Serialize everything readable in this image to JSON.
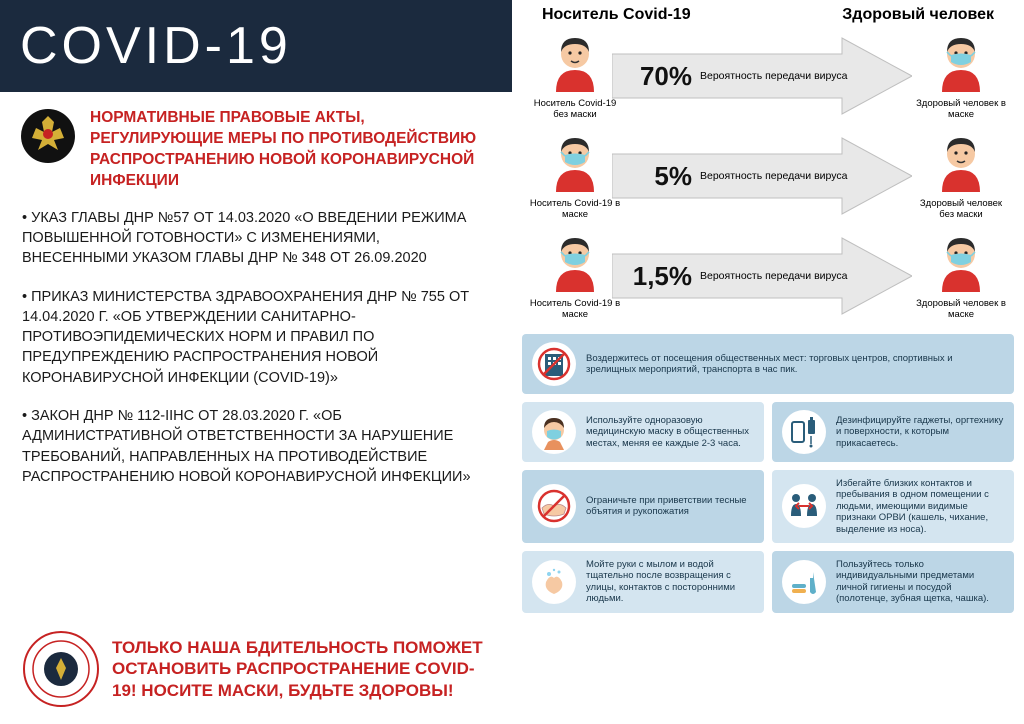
{
  "colors": {
    "title_bg": "#1b2a3e",
    "title_fg": "#ffffff",
    "accent_red": "#c62222",
    "text": "#1a1a1a",
    "arrow_fill": "#e8e8e8",
    "arrow_stroke": "#bfbfbf",
    "tip_bg_a": "#bcd6e6",
    "tip_bg_b": "#d4e5f0",
    "tip_text": "#18364a",
    "person_red": "#d9322e",
    "person_skin": "#f6c9a3",
    "person_hair": "#2b2b2b",
    "mask": "#7fd0e0",
    "stamp_ring": "#c62222",
    "emblem_bg": "#111111"
  },
  "title": "COVID-19",
  "subtitle": "НОРМАТИВНЫЕ ПРАВОВЫЕ АКТЫ, РЕГУЛИРУЮЩИЕ МЕРЫ ПО ПРОТИВОДЕЙСТВИЮ РАСПРОСТРАНЕНИЮ НОВОЙ КОРОНАВИРУСНОЙ ИНФЕКЦИИ",
  "decrees": [
    "• УКАЗ ГЛАВЫ ДНР №57 ОТ 14.03.2020 «О ВВЕДЕНИИ РЕЖИМА ПОВЫШЕННОЙ ГОТОВНОСТИ» С ИЗМЕНЕНИЯМИ, ВНЕСЕННЫМИ  УКАЗОМ ГЛАВЫ ДНР № 348 ОТ 26.09.2020",
    "• ПРИКАЗ МИНИСТЕРСТВА ЗДРАВООХРАНЕНИЯ ДНР № 755 ОТ 14.04.2020 Г. «ОБ УТВЕРЖДЕНИИ САНИТАРНО-ПРОТИВОЭПИДЕМИЧЕСКИХ НОРМ И ПРАВИЛ ПО ПРЕДУПРЕЖДЕНИЮ РАСПРОСТРАНЕНИЯ НОВОЙ КОРОНАВИРУСНОЙ ИНФЕКЦИИ (COVID-19)»",
    "• ЗАКОН ДНР № 112-IIНС ОТ 28.03.2020 Г. «ОБ АДМИНИСТРАТИВНОЙ ОТВЕТСТВЕННОСТИ ЗА НАРУШЕНИЕ ТРЕБОВАНИЙ, НАПРАВЛЕННЫХ НА ПРОТИВОДЕЙСТВИЕ РАСПРОСТРАНЕНИЮ НОВОЙ КОРОНАВИРУСНОЙ ИНФЕКЦИИ»"
  ],
  "bottom_text": "ТОЛЬКО НАША БДИТЕЛЬНОСТЬ ПОМОЖЕТ ОСТАНОВИТЬ РАСПРОСТРАНЕНИЕ COVID-19! НОСИТЕ МАСКИ, БУДЬТЕ ЗДОРОВЫ!",
  "right_headers": {
    "left": "Носитель Covid-19",
    "right": "Здоровый человек"
  },
  "transmission": [
    {
      "pct": "70%",
      "left_label": "Носитель Covid-19 без маски",
      "left_mask": false,
      "right_label": "Здоровый человек в маске",
      "right_mask": true,
      "pct_label": "Вероятность передачи вируса"
    },
    {
      "pct": "5%",
      "left_label": "Носитель Covid-19 в маске",
      "left_mask": true,
      "right_label": "Здоровый человек без маски",
      "right_mask": false,
      "pct_label": "Вероятность передачи вируса"
    },
    {
      "pct": "1,5%",
      "left_label": "Носитель Covid-19 в маске",
      "left_mask": true,
      "right_label": "Здоровый человек в маске",
      "right_mask": true,
      "pct_label": "Вероятность передачи вируса"
    }
  ],
  "tips": [
    [
      {
        "icon": "no-building",
        "text": "Воздержитесь от посещения общественных мест: торговых центров, спортивных и зрелищных мероприятий, транспорта в час пик."
      }
    ],
    [
      {
        "icon": "mask-face",
        "text": "Используйте одноразовую медицинскую маску в общественных местах, меняя ее каждые 2-3 часа."
      },
      {
        "icon": "sanitize-phone",
        "text": "Дезинфицируйте гаджеты, оргтехнику и поверхности, к которым прикасаетесь."
      }
    ],
    [
      {
        "icon": "no-handshake",
        "text": "Ограничьте при приветствии тесные объятия и рукопожатия"
      },
      {
        "icon": "distance",
        "text": "Избегайте близких контактов и пребывания в одном помещении с людьми, имеющими видимые признаки ОРВИ (кашель, чихание, выделение из носа)."
      }
    ],
    [
      {
        "icon": "wash-hands",
        "text": "Мойте руки с мылом и водой тщательно после возвращения с улицы, контактов с посторонними людьми."
      },
      {
        "icon": "personal-items",
        "text": "Пользуйтесь только индивидуальными предметами личной гигиены и посудой (полотенце, зубная щетка, чашка)."
      }
    ]
  ]
}
